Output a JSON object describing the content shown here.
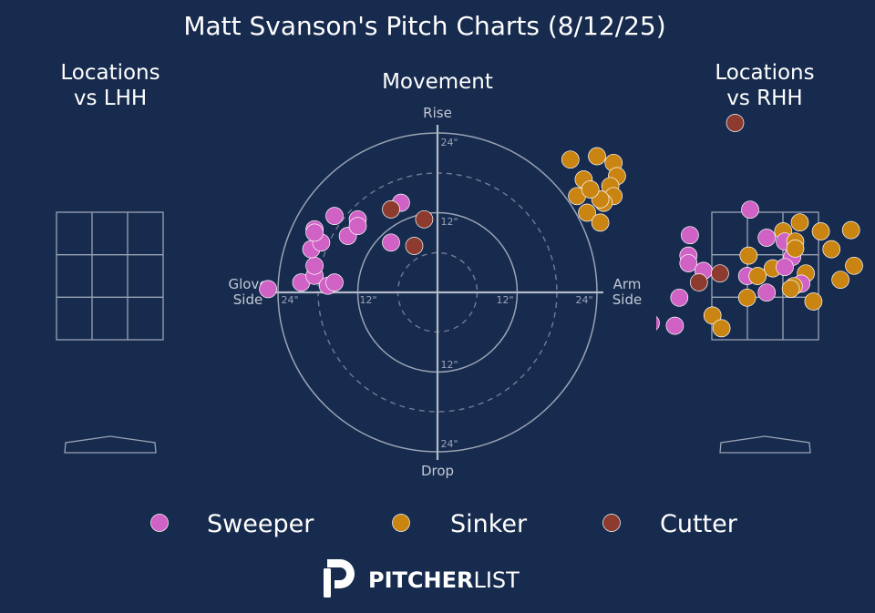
{
  "chart_data": {
    "title": "Matt Svanson's Pitch Charts (8/12/25)",
    "pitch_types": [
      {
        "name": "Sweeper",
        "color": "#cf62c4"
      },
      {
        "name": "Sinker",
        "color": "#c98411"
      },
      {
        "name": "Cutter",
        "color": "#8c3b2e"
      }
    ],
    "panels": {
      "lhh": {
        "title_line1": "Locations",
        "title_line2": "vs LHH",
        "pitches": []
      },
      "movement": {
        "type": "scatter",
        "title": "Movement",
        "labels": {
          "top": "Rise",
          "bottom": "Drop",
          "left_line1": "Glove",
          "left_line2": "Side",
          "right_line1": "Arm",
          "right_line2": "Side"
        },
        "ring_labels": [
          "12\"",
          "24\""
        ],
        "units": "inches",
        "pitches": [
          {
            "type": "Sweeper",
            "x": -25.5,
            "y": 0.5
          },
          {
            "type": "Sweeper",
            "x": -20.5,
            "y": 1.5
          },
          {
            "type": "Sweeper",
            "x": -18.5,
            "y": 2.5
          },
          {
            "type": "Sweeper",
            "x": -16.5,
            "y": 1.0
          },
          {
            "type": "Sweeper",
            "x": -15.5,
            "y": 1.5
          },
          {
            "type": "Sweeper",
            "x": -18.5,
            "y": 4.0
          },
          {
            "type": "Sweeper",
            "x": -19.0,
            "y": 6.5
          },
          {
            "type": "Sweeper",
            "x": -17.5,
            "y": 7.5
          },
          {
            "type": "Sweeper",
            "x": -18.5,
            "y": 9.5
          },
          {
            "type": "Sweeper",
            "x": -18.5,
            "y": 9.0
          },
          {
            "type": "Sweeper",
            "x": -15.5,
            "y": 11.5
          },
          {
            "type": "Sweeper",
            "x": -12.0,
            "y": 11.0
          },
          {
            "type": "Sweeper",
            "x": -13.5,
            "y": 8.5
          },
          {
            "type": "Sweeper",
            "x": -12.0,
            "y": 10.0
          },
          {
            "type": "Sweeper",
            "x": -7.0,
            "y": 7.5
          },
          {
            "type": "Sweeper",
            "x": -5.5,
            "y": 13.5
          },
          {
            "type": "Cutter",
            "x": -7.0,
            "y": 12.5
          },
          {
            "type": "Cutter",
            "x": -2.0,
            "y": 11.0
          },
          {
            "type": "Cutter",
            "x": -3.5,
            "y": 7.0
          },
          {
            "type": "Sinker",
            "x": 20.0,
            "y": 20.0
          },
          {
            "type": "Sinker",
            "x": 24.0,
            "y": 20.5
          },
          {
            "type": "Sinker",
            "x": 26.5,
            "y": 19.5
          },
          {
            "type": "Sinker",
            "x": 27.0,
            "y": 17.5
          },
          {
            "type": "Sinker",
            "x": 26.0,
            "y": 16.0
          },
          {
            "type": "Sinker",
            "x": 26.5,
            "y": 14.5
          },
          {
            "type": "Sinker",
            "x": 25.0,
            "y": 13.5
          },
          {
            "type": "Sinker",
            "x": 22.0,
            "y": 17.0
          },
          {
            "type": "Sinker",
            "x": 21.0,
            "y": 14.5
          },
          {
            "type": "Sinker",
            "x": 22.5,
            "y": 12.0
          },
          {
            "type": "Sinker",
            "x": 24.5,
            "y": 10.5
          },
          {
            "type": "Sinker",
            "x": 24.5,
            "y": 14.0
          },
          {
            "type": "Sinker",
            "x": 23.0,
            "y": 15.5
          }
        ]
      },
      "rhh": {
        "title_line1": "Locations",
        "title_line2": "vs RHH",
        "units": "feet",
        "pitches": [
          {
            "type": "Cutter",
            "x": -0.4,
            "y": 4.9
          },
          {
            "type": "Sweeper",
            "x": -0.2,
            "y": 3.54
          },
          {
            "type": "Sweeper",
            "x": -1.0,
            "y": 3.14
          },
          {
            "type": "Sinker",
            "x": 0.24,
            "y": 3.2
          },
          {
            "type": "Sinker",
            "x": 0.46,
            "y": 3.34
          },
          {
            "type": "Sinker",
            "x": 0.74,
            "y": 3.2
          },
          {
            "type": "Sinker",
            "x": 1.14,
            "y": 3.22
          },
          {
            "type": "Sweeper",
            "x": 0.02,
            "y": 3.1
          },
          {
            "type": "Sweeper",
            "x": 0.26,
            "y": 3.04
          },
          {
            "type": "Sinker",
            "x": 0.4,
            "y": 3.04
          },
          {
            "type": "Sweeper",
            "x": 0.36,
            "y": 2.8
          },
          {
            "type": "Sinker",
            "x": 0.4,
            "y": 2.93
          },
          {
            "type": "Sweeper",
            "x": -1.02,
            "y": 2.82
          },
          {
            "type": "Sinker",
            "x": -0.22,
            "y": 2.82
          },
          {
            "type": "Sinker",
            "x": 0.88,
            "y": 2.92
          },
          {
            "type": "Sweeper",
            "x": -1.02,
            "y": 2.7
          },
          {
            "type": "Sweeper",
            "x": -0.82,
            "y": 2.58
          },
          {
            "type": "Cutter",
            "x": -0.6,
            "y": 2.54
          },
          {
            "type": "Sinker",
            "x": 0.1,
            "y": 2.62
          },
          {
            "type": "Sweeper",
            "x": 0.26,
            "y": 2.64
          },
          {
            "type": "Sinker",
            "x": 1.18,
            "y": 2.66
          },
          {
            "type": "Sweeper",
            "x": -0.24,
            "y": 2.5
          },
          {
            "type": "Sinker",
            "x": -0.1,
            "y": 2.5
          },
          {
            "type": "Sinker",
            "x": 0.54,
            "y": 2.54
          },
          {
            "type": "Sweeper",
            "x": 0.48,
            "y": 2.38
          },
          {
            "type": "Sinker",
            "x": 1.0,
            "y": 2.44
          },
          {
            "type": "Cutter",
            "x": -0.88,
            "y": 2.4
          },
          {
            "type": "Sinker",
            "x": 0.38,
            "y": 2.34
          },
          {
            "type": "Sinker",
            "x": 0.34,
            "y": 2.3
          },
          {
            "type": "Sweeper",
            "x": 0.02,
            "y": 2.24
          },
          {
            "type": "Sweeper",
            "x": -1.14,
            "y": 2.16
          },
          {
            "type": "Sinker",
            "x": -0.24,
            "y": 2.16
          },
          {
            "type": "Sinker",
            "x": 0.64,
            "y": 2.1
          },
          {
            "type": "Sinker",
            "x": -0.7,
            "y": 1.88
          },
          {
            "type": "Sweeper",
            "x": -1.52,
            "y": 1.76
          },
          {
            "type": "Sweeper",
            "x": -1.2,
            "y": 1.72
          },
          {
            "type": "Sinker",
            "x": -0.58,
            "y": 1.68
          }
        ]
      }
    }
  },
  "legend": [
    {
      "label": "Sweeper",
      "color": "#cf62c4"
    },
    {
      "label": "Sinker",
      "color": "#c98411"
    },
    {
      "label": "Cutter",
      "color": "#8c3b2e"
    }
  ],
  "brand": {
    "name_bold": "PITCHER",
    "name_light": "LIST"
  }
}
